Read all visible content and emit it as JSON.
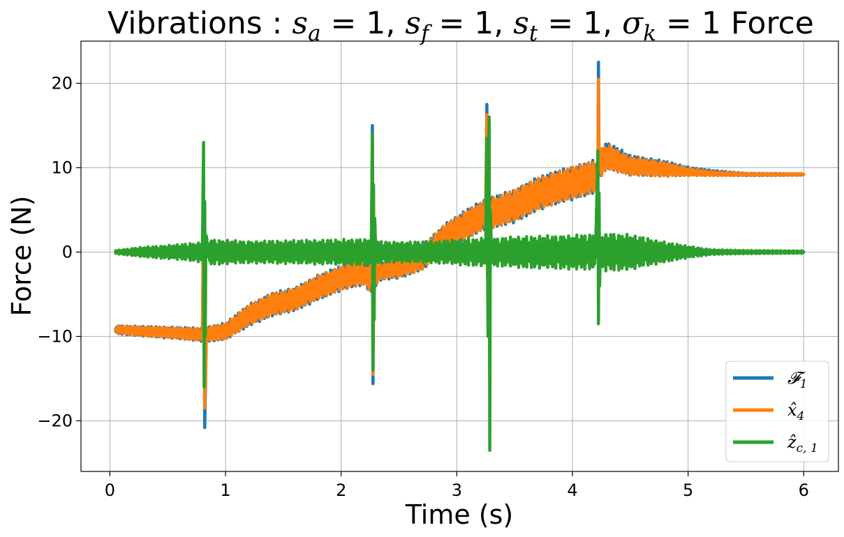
{
  "chart_data": {
    "type": "line",
    "title": {
      "prefix": "Vibrations : ",
      "terms": [
        {
          "symbol": "s",
          "sub": "a",
          "value": " = 1, "
        },
        {
          "symbol": "s",
          "sub": "f",
          "value": " = 1, "
        },
        {
          "symbol": "s",
          "sub": "t",
          "value": " = 1, "
        },
        {
          "symbol": "σ",
          "sub": "k",
          "value": " = 1"
        }
      ],
      "suffix": " Force"
    },
    "xlabel": "Time (s)",
    "ylabel": "Force (N)",
    "xlim": [
      -0.25,
      6.3
    ],
    "ylim": [
      -26,
      25
    ],
    "xticks": [
      0,
      1,
      2,
      3,
      4,
      5,
      6
    ],
    "yticks": [
      -20,
      -10,
      0,
      10,
      20
    ],
    "ytick_labels": [
      "−20",
      "−10",
      "0",
      "10",
      "20"
    ],
    "grid": true,
    "legend_position": "lower-right",
    "series": [
      {
        "name": "𝓕",
        "name_sub": "1",
        "color": "#1f77b4",
        "x": [
          0.05,
          0.3,
          0.6,
          0.8,
          0.81,
          0.82,
          0.83,
          0.835,
          0.84,
          0.86,
          1.0,
          1.2,
          1.4,
          1.6,
          1.8,
          2.0,
          2.1,
          2.2,
          2.26,
          2.27,
          2.275,
          2.28,
          2.29,
          2.31,
          2.35,
          2.5,
          2.7,
          2.9,
          3.1,
          3.25,
          3.26,
          3.265,
          3.27,
          3.28,
          3.32,
          3.5,
          3.7,
          3.9,
          4.1,
          4.2,
          4.22,
          4.225,
          4.23,
          4.25,
          4.3,
          4.5,
          4.8,
          5.0,
          5.2,
          5.5,
          6.0
        ],
        "y": [
          -9.2,
          -9.4,
          -9.6,
          -9.8,
          6,
          -20.8,
          -13,
          -9,
          -9.8,
          -9.7,
          -9.4,
          -7.5,
          -6.2,
          -5.6,
          -4.2,
          -3.1,
          -2.6,
          -2.4,
          -3.5,
          15,
          -15.6,
          -6,
          -3,
          -2.6,
          -2.3,
          -1.9,
          -0.7,
          1.8,
          3.4,
          4.5,
          17.5,
          -3,
          4.5,
          4.6,
          4.7,
          5.5,
          6.9,
          7.8,
          8.6,
          9.0,
          9.0,
          22.5,
          9.5,
          10.7,
          11.5,
          10.3,
          9.9,
          9.6,
          9.4,
          9.2,
          9.2
        ],
        "noise": [
          0.5,
          0.6,
          0.7,
          0.8,
          0,
          0,
          0,
          0,
          0.8,
          0.9,
          1.0,
          1.3,
          1.4,
          1.4,
          1.5,
          1.5,
          1.6,
          1.6,
          1.5,
          0,
          0,
          0,
          1.3,
          1.2,
          1.0,
          1.2,
          1.5,
          1.6,
          1.8,
          1.8,
          0,
          0,
          1.9,
          1.9,
          1.9,
          2.0,
          2.0,
          2.0,
          2.0,
          2.0,
          0,
          0,
          0,
          1.8,
          1.6,
          1.2,
          0.9,
          0.5,
          0.3,
          0.15,
          0.1
        ]
      },
      {
        "name": "x̂",
        "name_sub": "4",
        "color": "#ff7f0e",
        "x": [
          0.05,
          0.3,
          0.6,
          0.8,
          0.81,
          0.82,
          0.83,
          0.835,
          0.84,
          0.86,
          1.0,
          1.2,
          1.4,
          1.6,
          1.8,
          2.0,
          2.1,
          2.2,
          2.26,
          2.27,
          2.275,
          2.28,
          2.29,
          2.31,
          2.35,
          2.5,
          2.7,
          2.9,
          3.1,
          3.25,
          3.26,
          3.265,
          3.27,
          3.28,
          3.32,
          3.5,
          3.7,
          3.9,
          4.1,
          4.2,
          4.22,
          4.225,
          4.23,
          4.25,
          4.3,
          4.5,
          4.8,
          5.0,
          5.2,
          5.5,
          6.0
        ],
        "y": [
          -9.2,
          -9.4,
          -9.6,
          -9.8,
          4,
          -18.5,
          -12,
          -9,
          -9.8,
          -9.7,
          -9.4,
          -7.5,
          -6.2,
          -5.6,
          -4.2,
          -3.1,
          -2.6,
          -2.4,
          -3.5,
          13,
          -14.5,
          -6,
          -3,
          -2.6,
          -2.3,
          -1.9,
          -0.7,
          1.8,
          3.4,
          4.5,
          16.3,
          -3,
          4.5,
          4.6,
          4.7,
          5.5,
          6.9,
          7.8,
          8.6,
          9.0,
          9.0,
          20.5,
          9.5,
          10.6,
          11.3,
          10.2,
          9.8,
          9.5,
          9.3,
          9.2,
          9.2
        ],
        "noise": [
          0.45,
          0.55,
          0.65,
          0.75,
          0,
          0,
          0,
          0,
          0.75,
          0.85,
          0.95,
          1.2,
          1.3,
          1.3,
          1.4,
          1.4,
          1.5,
          1.5,
          1.4,
          0,
          0,
          0,
          1.2,
          1.1,
          0.9,
          1.1,
          1.4,
          1.5,
          1.7,
          1.7,
          0,
          0,
          1.8,
          1.8,
          1.8,
          1.9,
          1.9,
          1.9,
          1.9,
          1.9,
          0,
          0,
          0,
          1.7,
          1.5,
          1.1,
          0.85,
          0.45,
          0.25,
          0.12,
          0.08
        ]
      },
      {
        "name": "ẑ",
        "name_sub": "c, 1",
        "color": "#2ca02c",
        "x": [
          0.05,
          0.3,
          0.6,
          0.8,
          0.81,
          0.815,
          0.82,
          0.825,
          0.83,
          0.85,
          0.9,
          1.2,
          1.6,
          2.0,
          2.2,
          2.26,
          2.27,
          2.275,
          2.28,
          2.285,
          2.29,
          2.3,
          2.35,
          2.5,
          2.8,
          3.1,
          3.25,
          3.26,
          3.27,
          3.28,
          3.285,
          3.29,
          3.3,
          3.35,
          3.6,
          3.9,
          4.1,
          4.2,
          4.22,
          4.225,
          4.23,
          4.235,
          4.24,
          4.3,
          4.5,
          4.8,
          5.0,
          5.2,
          5.5,
          6.0
        ],
        "y": [
          0,
          0,
          0,
          0,
          13,
          -16,
          6,
          -10,
          2,
          0,
          0,
          0,
          0,
          0,
          0,
          0,
          14,
          -14,
          8,
          -8,
          4,
          0,
          0,
          0,
          0,
          0,
          0,
          13.5,
          -10,
          16,
          -23.5,
          5,
          0,
          0,
          0,
          0,
          0,
          0,
          12,
          -8.5,
          7,
          -4,
          0,
          0,
          0,
          0,
          0,
          0,
          0,
          0
        ],
        "noise": [
          0.2,
          0.6,
          0.9,
          1.2,
          0,
          0,
          0,
          0,
          0,
          1.5,
          1.5,
          1.3,
          1.4,
          1.5,
          1.6,
          1.6,
          0,
          0,
          0,
          0,
          0,
          1.5,
          1.3,
          1.2,
          1.3,
          1.6,
          1.7,
          0,
          0,
          0,
          0,
          0,
          1.7,
          1.7,
          1.9,
          2.0,
          2.1,
          2.1,
          0,
          0,
          0,
          0,
          2.0,
          2.3,
          2.1,
          1.2,
          0.7,
          0.3,
          0.2,
          0.15
        ]
      }
    ]
  }
}
